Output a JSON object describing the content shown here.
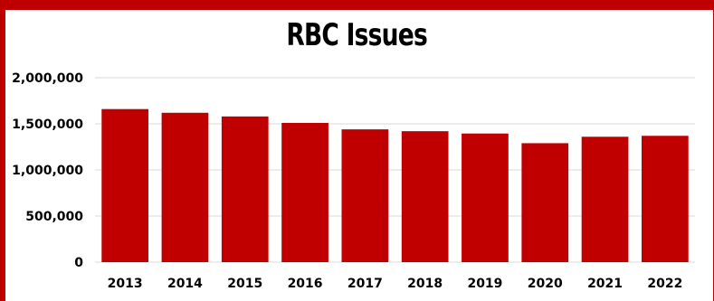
{
  "chart_data": {
    "type": "bar",
    "title": "RBC Issues",
    "xlabel": "",
    "ylabel": "",
    "categories": [
      "2013",
      "2014",
      "2015",
      "2016",
      "2017",
      "2018",
      "2019",
      "2020",
      "2021",
      "2022"
    ],
    "values": [
      1660000,
      1620000,
      1580000,
      1510000,
      1440000,
      1420000,
      1395000,
      1290000,
      1360000,
      1370000
    ],
    "ylim": [
      0,
      2000000
    ],
    "yticks": [
      0,
      500000,
      1000000,
      1500000,
      2000000
    ],
    "ytick_labels": [
      "0",
      "500,000",
      "1,000,000",
      "1,500,000",
      "2,000,000"
    ],
    "grid": true,
    "legend": "none",
    "bar_color": "#c00000",
    "frame_color": "#bf0000",
    "grid_color": "#d9d9d9"
  }
}
